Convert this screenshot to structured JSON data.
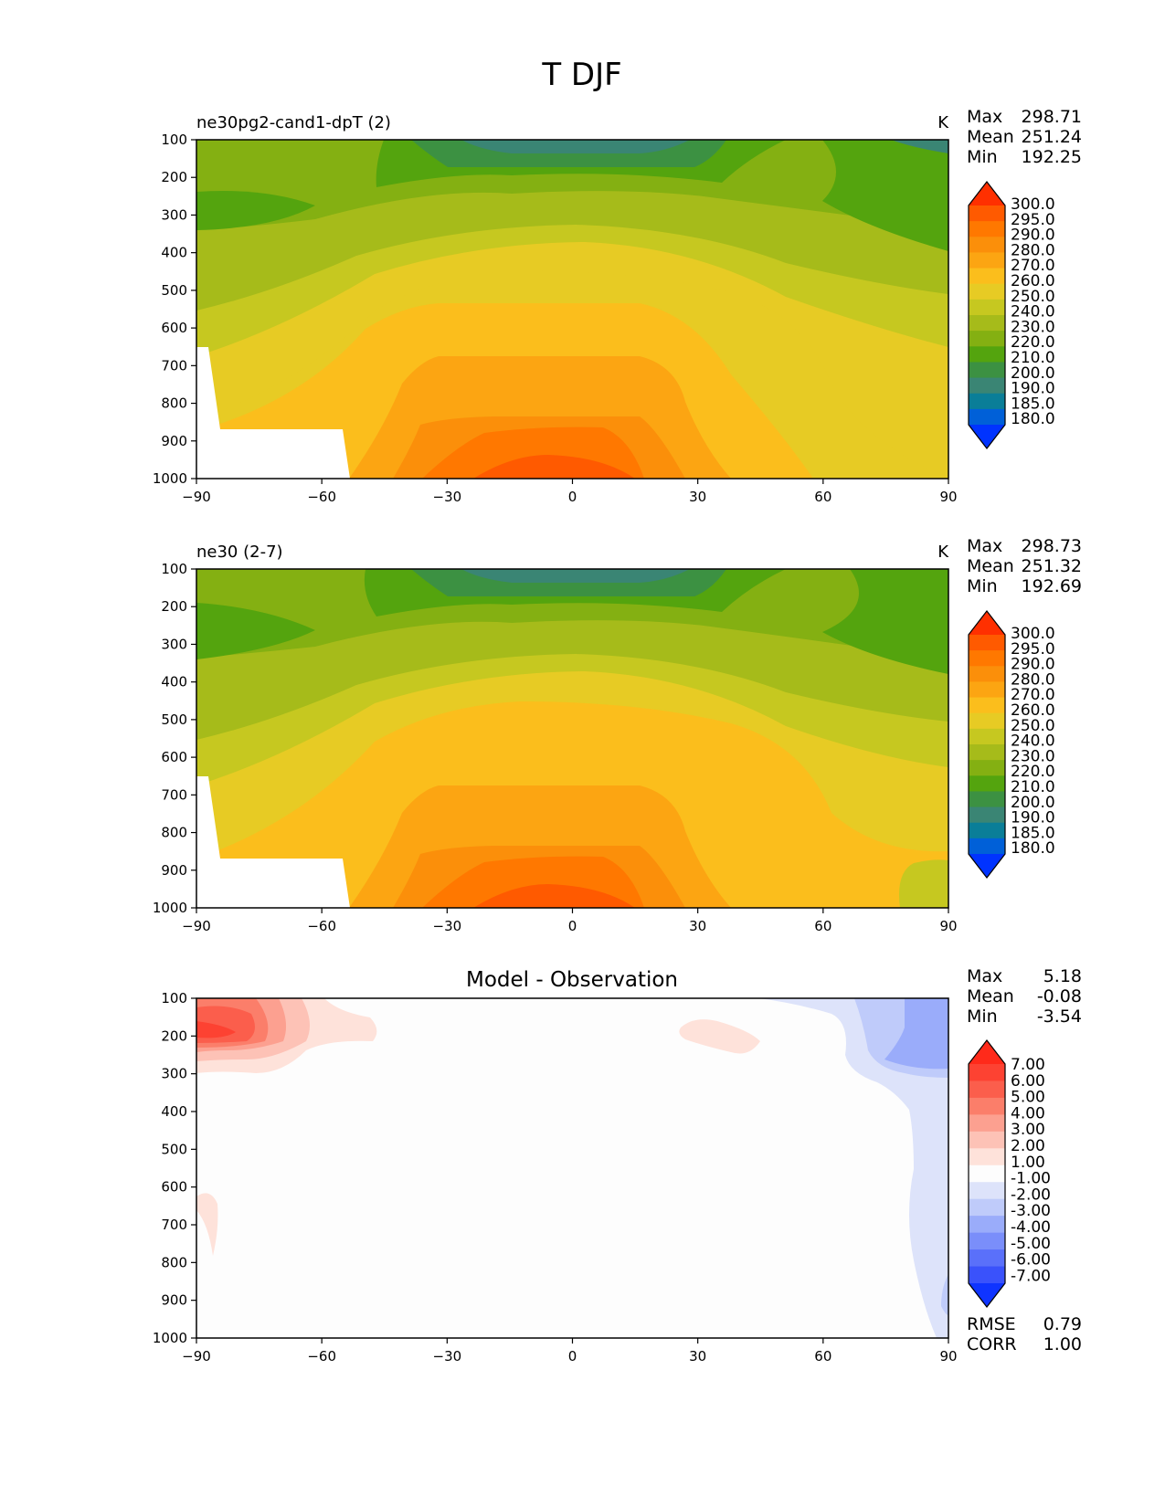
{
  "figure_title": "T DJF",
  "chart_data": [
    {
      "type": "contour",
      "title": "ne30pg2-cand1-dpT (2)",
      "units": "K",
      "stats": {
        "max_label": "Max",
        "max": "298.71",
        "mean_label": "Mean",
        "mean": "251.24",
        "min_label": "Min",
        "min": "192.25"
      },
      "x_ticks": [
        "−90",
        "−60",
        "−30",
        "0",
        "30",
        "60",
        "90"
      ],
      "xlim": [
        -90,
        90
      ],
      "y_ticks": [
        "100",
        "200",
        "300",
        "400",
        "500",
        "600",
        "700",
        "800",
        "900",
        "1000"
      ],
      "ylim": [
        100,
        1000
      ],
      "colorbar_levels": [
        "300.0",
        "295.0",
        "290.0",
        "280.0",
        "270.0",
        "260.0",
        "250.0",
        "240.0",
        "230.0",
        "220.0",
        "210.0",
        "200.0",
        "190.0",
        "185.0",
        "180.0"
      ],
      "colorbar_colors": [
        "#ff3000",
        "#ff5a00",
        "#ff7800",
        "#fb8f0a",
        "#fca512",
        "#fbbe1c",
        "#e7cb24",
        "#c6c820",
        "#a6bb1a",
        "#84b012",
        "#54a40e",
        "#3c9142",
        "#3a8574",
        "#0a7e98",
        "#0060d8",
        "#0033ff"
      ]
    },
    {
      "type": "contour",
      "title": "ne30 (2-7)",
      "units": "K",
      "stats": {
        "max_label": "Max",
        "max": "298.73",
        "mean_label": "Mean",
        "mean": "251.32",
        "min_label": "Min",
        "min": "192.69"
      },
      "x_ticks": [
        "−90",
        "−60",
        "−30",
        "0",
        "30",
        "60",
        "90"
      ],
      "xlim": [
        -90,
        90
      ],
      "y_ticks": [
        "100",
        "200",
        "300",
        "400",
        "500",
        "600",
        "700",
        "800",
        "900",
        "1000"
      ],
      "ylim": [
        100,
        1000
      ],
      "colorbar_levels": [
        "300.0",
        "295.0",
        "290.0",
        "280.0",
        "270.0",
        "260.0",
        "250.0",
        "240.0",
        "230.0",
        "220.0",
        "210.0",
        "200.0",
        "190.0",
        "185.0",
        "180.0"
      ],
      "colorbar_colors": [
        "#ff3000",
        "#ff5a00",
        "#ff7800",
        "#fb8f0a",
        "#fca512",
        "#fbbe1c",
        "#e7cb24",
        "#c6c820",
        "#a6bb1a",
        "#84b012",
        "#54a40e",
        "#3c9142",
        "#3a8574",
        "#0a7e98",
        "#0060d8",
        "#0033ff"
      ]
    },
    {
      "type": "contour",
      "title": "Model - Observation",
      "stats": {
        "max_label": "Max",
        "max": "5.18",
        "mean_label": "Mean",
        "mean": "-0.08",
        "min_label": "Min",
        "min": "-3.54"
      },
      "extra_stats": {
        "rmse_label": "RMSE",
        "rmse": "0.79",
        "corr_label": "CORR",
        "corr": "1.00"
      },
      "x_ticks": [
        "−90",
        "−60",
        "−30",
        "0",
        "30",
        "60",
        "90"
      ],
      "xlim": [
        -90,
        90
      ],
      "y_ticks": [
        "100",
        "200",
        "300",
        "400",
        "500",
        "600",
        "700",
        "800",
        "900",
        "1000"
      ],
      "ylim": [
        100,
        1000
      ],
      "colorbar_levels": [
        "7.00",
        "6.00",
        "5.00",
        "4.00",
        "3.00",
        "2.00",
        "1.00",
        "-1.00",
        "-2.00",
        "-3.00",
        "-4.00",
        "-5.00",
        "-6.00",
        "-7.00"
      ],
      "colorbar_colors": [
        "#ff2a1a",
        "#fd4232",
        "#fb5e4c",
        "#fb7e6a",
        "#fca090",
        "#fdc2b6",
        "#fee2da",
        "#fdfdfd",
        "#dde3fa",
        "#bfcbfa",
        "#9aacfa",
        "#7a8efa",
        "#5a70fa",
        "#3a52fb",
        "#0f34ff"
      ]
    }
  ]
}
